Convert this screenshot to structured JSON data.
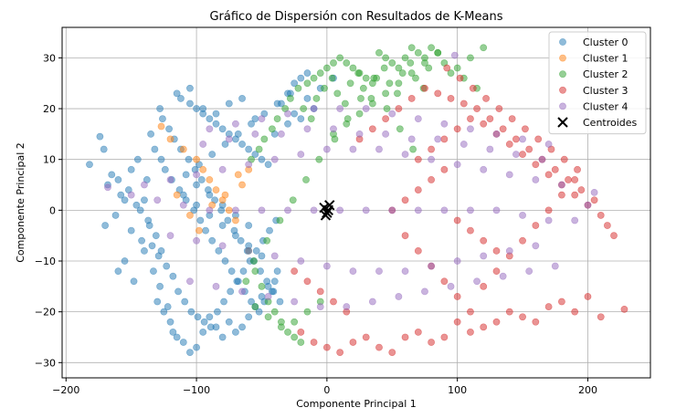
{
  "chart_data": {
    "type": "scatter",
    "title": "Gráfico de Dispersión con Resultados de K-Means",
    "xlabel": "Componente Principal 1",
    "ylabel": "Componente Principal 2",
    "xlim": [
      -203,
      248
    ],
    "ylim": [
      -33,
      36
    ],
    "xticks": [
      -200,
      -100,
      0,
      100,
      200
    ],
    "yticks": [
      -30,
      -20,
      -10,
      0,
      10,
      20,
      30
    ],
    "xtick_labels": [
      "−200",
      "−100",
      "0",
      "100",
      "200"
    ],
    "ytick_labels": [
      "−30",
      "−20",
      "−10",
      "0",
      "10",
      "20",
      "30"
    ],
    "grid": true,
    "legend_position": "top-right",
    "series": [
      {
        "name": "Cluster 0",
        "color": "#1f77b4",
        "alpha": 0.5,
        "x": [
          -182,
          -174,
          -171,
          -165,
          -160,
          -158,
          -168,
          -155,
          -162,
          -170,
          -150,
          -140,
          -133,
          -128,
          -130,
          -125,
          -120,
          -118,
          -122,
          -115,
          -110,
          -105,
          -100,
          -95,
          -90,
          -85,
          -80,
          -75,
          -70,
          -65,
          -60,
          -55,
          -50,
          -45,
          -40,
          -135,
          -132,
          -127,
          -124,
          -119,
          -113,
          -108,
          -102,
          -97,
          -93,
          -88,
          -83,
          -78,
          -73,
          -68,
          -63,
          -58,
          -52,
          -48,
          -42,
          -38,
          -30,
          -25,
          -20,
          -15,
          -128,
          -126,
          -121,
          -117,
          -112,
          -106,
          -101,
          -96,
          -91,
          -86,
          -81,
          -76,
          -71,
          -66,
          -61,
          -56,
          -51,
          -46,
          -41,
          -36,
          -131,
          -127,
          -123,
          -118,
          -114,
          -109,
          -104,
          -99,
          -94,
          -89,
          -84,
          -79,
          -74,
          -69,
          -64,
          -59,
          -54,
          -49,
          -44,
          -39,
          -112,
          -105,
          -100,
          -95,
          -90,
          -85,
          -80,
          -75,
          -70,
          -65,
          -60,
          -55,
          -50,
          -45,
          -110,
          -100,
          -90,
          -80,
          -70,
          -60,
          -50,
          -35,
          -25,
          -15,
          -5,
          5,
          -10,
          -20,
          -30,
          -40,
          -145,
          -150,
          -140,
          -137,
          -142,
          -155,
          -160,
          -148,
          -152,
          -138,
          -143,
          -146,
          -136,
          -134,
          -129,
          -115,
          -105,
          -95,
          -85,
          -75,
          -65,
          -55,
          -100,
          -90,
          -80,
          -70,
          -60,
          -108,
          -98,
          -88,
          -78,
          -68,
          -58,
          -48,
          -38,
          -28
        ],
        "y": [
          9,
          14.5,
          12,
          7,
          6,
          3,
          5,
          2,
          -1,
          -3,
          -4,
          -8,
          -12,
          -15,
          -18,
          -20,
          -22,
          -24,
          -19,
          -25,
          -26,
          -28,
          -27,
          -24,
          -21,
          -23,
          -25,
          -22,
          -24,
          -23,
          -21,
          -19,
          -17,
          -15,
          -14,
          15,
          12,
          10,
          8,
          6,
          4,
          2,
          0,
          -2,
          -4,
          -6,
          -8,
          -10,
          -12,
          -14,
          -16,
          -18,
          -20,
          -18,
          -16,
          -12,
          23,
          25,
          26,
          27,
          20,
          18,
          16,
          14,
          12,
          10,
          8,
          6,
          4,
          2,
          0,
          -2,
          -4,
          -6,
          -8,
          -10,
          -12,
          -14,
          -16,
          -18,
          -5,
          -8,
          -11,
          -13,
          -16,
          -18,
          -20,
          -21,
          -22,
          -23,
          -20,
          -18,
          -16,
          -14,
          -12,
          -10,
          -8,
          -6,
          -4,
          -2,
          22,
          21,
          20,
          19,
          18,
          17,
          16,
          15,
          14,
          13,
          12,
          11,
          10,
          9,
          3,
          1,
          -1,
          -3,
          -5,
          -7,
          -9,
          21,
          19,
          22,
          24,
          26,
          20,
          18,
          17,
          15,
          10,
          8,
          2,
          -2,
          -6,
          -10,
          -12,
          -14,
          4,
          6,
          0,
          1,
          -3,
          -7,
          -9,
          23,
          24,
          20,
          19,
          21,
          22,
          18,
          5,
          3,
          1,
          -1,
          -3,
          7,
          9,
          11,
          13,
          15,
          17,
          19,
          21,
          23
        ]
      },
      {
        "name": "Cluster 1",
        "color": "#ff7f0e",
        "alpha": 0.5,
        "x": [
          -127,
          -120,
          -110,
          -100,
          -95,
          -90,
          -85,
          -80,
          -75,
          -70,
          -65,
          -60,
          -115,
          -105,
          -98,
          -88,
          -78,
          -68
        ],
        "y": [
          16.5,
          14,
          12,
          10,
          8,
          6,
          4,
          2,
          0,
          -2,
          5,
          8,
          3,
          -1,
          -4,
          1,
          3,
          7
        ]
      },
      {
        "name": "Cluster 2",
        "color": "#2ca02c",
        "alpha": 0.5,
        "x": [
          -60,
          -55,
          -50,
          -45,
          -40,
          -35,
          -30,
          -25,
          -20,
          -15,
          -10,
          -5,
          0,
          5,
          10,
          15,
          20,
          25,
          30,
          35,
          40,
          45,
          50,
          55,
          60,
          65,
          70,
          75,
          80,
          85,
          90,
          95,
          100,
          105,
          110,
          115,
          120,
          -58,
          -52,
          -48,
          -42,
          -38,
          -32,
          -28,
          -22,
          -18,
          -12,
          -8,
          -2,
          4,
          8,
          14,
          18,
          24,
          28,
          34,
          38,
          44,
          48,
          54,
          58,
          64,
          68,
          74,
          78,
          -62,
          -56,
          -46,
          -36,
          -26,
          -16,
          -6,
          6,
          16,
          26,
          36,
          46,
          56,
          66,
          -55,
          -45,
          -35,
          -25,
          -15,
          -5,
          5,
          15,
          25,
          35,
          45,
          55,
          65,
          75,
          85
        ],
        "y": [
          -8,
          -12,
          -15,
          -18,
          -20,
          -22,
          -24,
          -25,
          -26,
          25,
          26,
          27,
          28,
          29,
          30,
          29,
          28,
          27,
          26,
          25,
          31,
          30,
          29,
          28,
          30,
          32,
          31,
          30,
          32,
          31,
          29,
          27,
          28,
          26,
          30,
          24,
          32,
          10,
          12,
          14,
          16,
          18,
          20,
          22,
          24,
          20,
          18,
          22,
          24,
          26,
          23,
          21,
          25,
          27,
          24,
          22,
          26,
          28,
          25,
          23,
          27,
          29,
          26,
          24,
          28,
          -14,
          -10,
          -6,
          -2,
          2,
          6,
          10,
          14,
          18,
          22,
          26,
          20,
          16,
          12,
          -19,
          -21,
          -23,
          -22,
          -20,
          -18,
          15,
          17,
          19,
          21,
          23,
          25,
          27,
          29,
          31
        ]
      },
      {
        "name": "Cluster 3",
        "color": "#d62728",
        "alpha": 0.5,
        "x": [
          -20,
          -10,
          0,
          10,
          20,
          30,
          40,
          50,
          60,
          70,
          80,
          90,
          100,
          110,
          120,
          130,
          140,
          150,
          160,
          170,
          180,
          190,
          200,
          210,
          228,
          75,
          85,
          95,
          105,
          115,
          125,
          135,
          145,
          155,
          165,
          175,
          185,
          195,
          205,
          65,
          55,
          45,
          35,
          25,
          15,
          5,
          -5,
          -15,
          -25,
          92,
          102,
          112,
          122,
          132,
          142,
          152,
          162,
          172,
          182,
          192,
          60,
          70,
          80,
          90,
          100,
          110,
          120,
          130,
          140,
          150,
          160,
          170,
          180,
          190,
          70,
          80,
          90,
          100,
          110,
          120,
          130,
          140,
          150,
          160,
          170,
          180,
          190,
          200,
          210,
          215,
          220,
          50,
          60,
          70,
          80,
          90,
          100,
          110,
          120,
          130
        ],
        "y": [
          -24,
          -26,
          -27,
          -28,
          -26,
          -25,
          -27,
          -28,
          -25,
          -24,
          -26,
          -25,
          -22,
          -24,
          -23,
          -22,
          -20,
          -21,
          -22,
          -19,
          -18,
          -20,
          -17,
          -21,
          -19.5,
          24,
          23,
          22,
          21,
          20,
          18,
          16,
          14,
          12,
          10,
          8,
          6,
          4,
          2,
          22,
          20,
          18,
          16,
          14,
          -20,
          -18,
          -16,
          -14,
          -12,
          28,
          26,
          24,
          22,
          20,
          18,
          16,
          14,
          12,
          10,
          8,
          -5,
          -8,
          -11,
          -14,
          -17,
          -20,
          -15,
          -12,
          -9,
          -6,
          -3,
          0,
          3,
          6,
          10,
          12,
          14,
          16,
          18,
          17,
          15,
          13,
          11,
          9,
          7,
          5,
          3,
          1,
          -1,
          -3,
          -5,
          0,
          2,
          4,
          6,
          8,
          -2,
          -4,
          -6,
          -8
        ]
      },
      {
        "name": "Cluster 4",
        "color": "#9467bd",
        "alpha": 0.5,
        "x": [
          -168,
          -150,
          -130,
          -110,
          -90,
          -70,
          -50,
          -30,
          -10,
          10,
          30,
          50,
          70,
          90,
          110,
          130,
          150,
          170,
          190,
          205,
          200,
          98,
          -140,
          -120,
          -100,
          -80,
          -60,
          -40,
          -20,
          0,
          20,
          40,
          60,
          80,
          100,
          120,
          140,
          160,
          180,
          -120,
          -100,
          -80,
          -60,
          -40,
          -20,
          0,
          20,
          40,
          60,
          80,
          100,
          120,
          140,
          160,
          -90,
          -70,
          -50,
          -30,
          -10,
          10,
          30,
          50,
          70,
          90,
          110,
          130,
          150,
          170,
          -105,
          -85,
          -65,
          -45,
          -25,
          -5,
          15,
          35,
          55,
          75,
          95,
          115,
          135,
          155,
          175,
          -95,
          -75,
          -55,
          -35,
          -15,
          5,
          25,
          45,
          65,
          85,
          105,
          125,
          145,
          165
        ],
        "y": [
          4.5,
          3,
          2,
          1,
          0,
          0,
          0,
          0,
          0,
          0,
          0,
          0,
          0,
          0,
          0,
          0,
          -1,
          -2,
          -2,
          3.5,
          1,
          30.5,
          5,
          6,
          7,
          8,
          9,
          10,
          11,
          12,
          12,
          12,
          11,
          10,
          9,
          8,
          7,
          6,
          5,
          -5,
          -6,
          -7,
          -8,
          -9,
          -10,
          -11,
          -12,
          -12,
          -12,
          -11,
          -10,
          -9,
          -8,
          -7,
          16,
          17,
          18,
          19,
          20,
          20,
          20,
          19,
          18,
          17,
          16,
          15,
          14,
          13,
          -14,
          -15,
          -16,
          -17,
          -18,
          -19,
          -19,
          -18,
          -17,
          -16,
          -15,
          -14,
          -13,
          -12,
          -11,
          13,
          14,
          15,
          15,
          16,
          16,
          15,
          15,
          14,
          14,
          13,
          12,
          11,
          10
        ]
      },
      {
        "name": "Centroides",
        "color": "#000000",
        "marker": "x",
        "x": [
          -2,
          2,
          0,
          -1,
          1
        ],
        "y": [
          0.5,
          1,
          -0.5,
          -1,
          0
        ]
      }
    ]
  }
}
